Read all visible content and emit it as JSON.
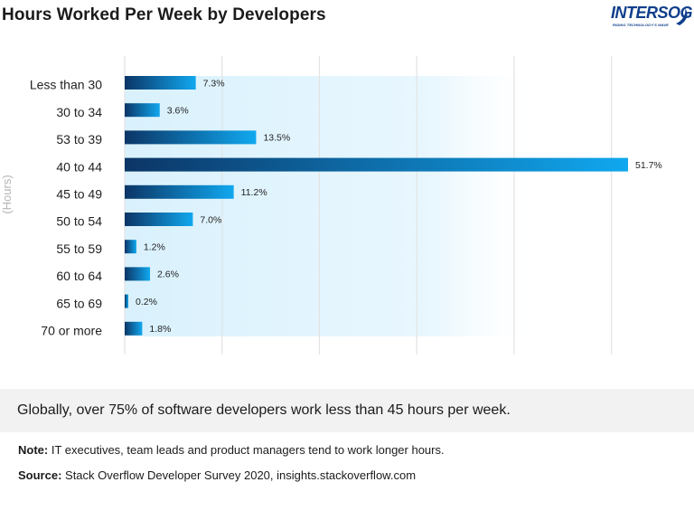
{
  "page": {
    "title": "Hours Worked Per Week by Developers",
    "logo": {
      "name": "INTERSOG",
      "tagline": "RIDING TECHNOLOGY'S WAVE"
    },
    "insight": "Globally, over 75% of software developers work less than 45 hours per week.",
    "note_label": "Note:",
    "note_text": " IT executives, team leads and product managers tend to work longer hours.",
    "source_label": "Source:",
    "source_text": " Stack Overflow Developer Survey 2020, insights.stackoverflow.com"
  },
  "colors": {
    "bar_dark": "#0c3566",
    "bar_light": "#10a8ef",
    "band": "#dff3fd",
    "grid": "#e3e3e3"
  },
  "chart_data": {
    "type": "bar",
    "orientation": "horizontal",
    "title": "Hours Worked Per Week by Developers",
    "ylabel": "(Hours)",
    "xlabel": "",
    "xlim": [
      0,
      50
    ],
    "grid": true,
    "categories": [
      "Less than 30",
      "30 to 34",
      "53 to 39",
      "40 to 44",
      "45 to 49",
      "50 to 54",
      "55 to 59",
      "60 to 64",
      "65 to 69",
      "70 or more"
    ],
    "values": [
      7.3,
      3.6,
      13.5,
      51.7,
      11.2,
      7.0,
      1.2,
      2.6,
      0.2,
      1.8
    ],
    "labels": [
      "7.3%",
      "3.6%",
      "13.5%",
      "51.7%",
      "11.2%",
      "7.0%",
      "1.2%",
      "2.6%",
      "0.2%",
      "1.8%"
    ]
  }
}
